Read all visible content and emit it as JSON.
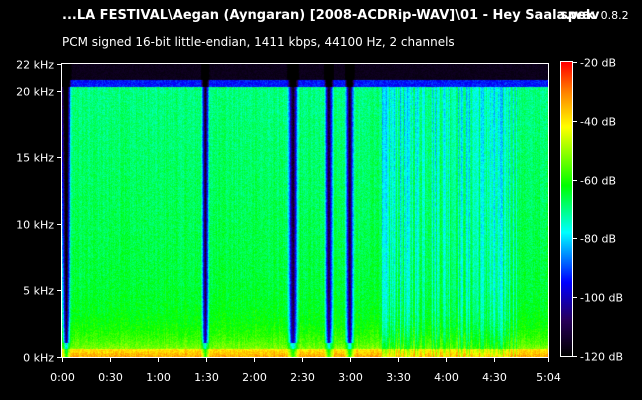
{
  "header": {
    "file_title": "...LA FESTIVAL\\Aegan (Ayngaran) [2008-ACDRip-WAV]\\01 - Hey Saala.wav",
    "app_name": "spek",
    "app_version": "0.8.2",
    "format_info": "PCM signed 16-bit little-endian, 1411 kbps, 44100 Hz, 2 channels"
  },
  "colors": {
    "background": "#000000",
    "text": "#ffffff",
    "high": "#ff0000",
    "mid": "#ffff00",
    "low": "#00ff00",
    "lower": "#00ffff",
    "lowest": "#0000ff",
    "floor": "#000000"
  },
  "chart_data": {
    "type": "heatmap",
    "x_ticks": [
      "0:00",
      "0:30",
      "1:00",
      "1:30",
      "2:00",
      "2:30",
      "3:00",
      "3:30",
      "4:00",
      "4:30",
      "5:04"
    ],
    "y_ticks": [
      "0 kHz",
      "5 kHz",
      "10 kHz",
      "15 kHz",
      "20 kHz",
      "22 kHz"
    ],
    "y_values_khz": [
      0,
      5,
      10,
      15,
      20,
      22
    ],
    "x_range_seconds": [
      0,
      304
    ],
    "y_range_khz": [
      0,
      22
    ],
    "scale_ticks": [
      "-20 dB",
      "-40 dB",
      "-60 dB",
      "-80 dB",
      "-100 dB",
      "-120 dB"
    ],
    "scale_values_db": [
      -20,
      -40,
      -60,
      -80,
      -100,
      -120
    ],
    "scale_range_db": [
      -120,
      -20
    ],
    "cutoff_khz": 20.5,
    "dips_seconds": [
      [
        1,
        4
      ],
      [
        88,
        91
      ],
      [
        142,
        147
      ],
      [
        165,
        169
      ],
      [
        178,
        182
      ]
    ]
  }
}
